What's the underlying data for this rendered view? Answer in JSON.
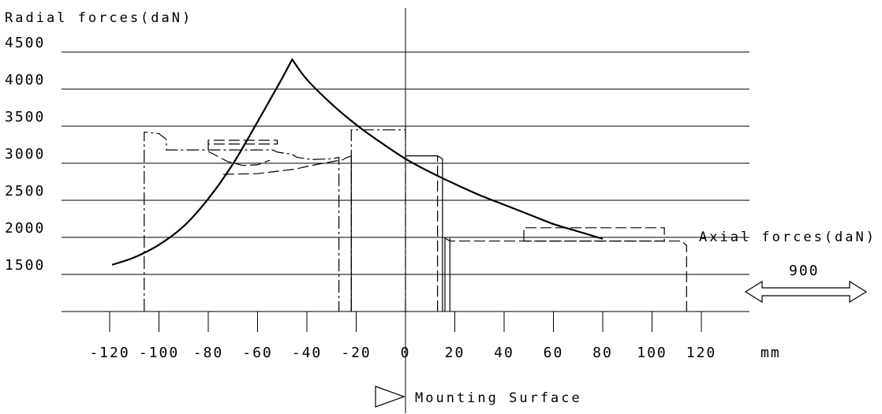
{
  "chart_data": {
    "type": "line",
    "title": "Radial forces(daN)",
    "xlabel": "mm",
    "y_ticks": [
      4500,
      4000,
      3500,
      3000,
      2500,
      2000,
      1500
    ],
    "x_ticks": [
      -120,
      -100,
      -80,
      -60,
      -40,
      -20,
      0,
      20,
      40,
      60,
      80,
      100,
      120
    ],
    "x_tick_labels": [
      "-120",
      "-100",
      "-80",
      "-60",
      "-40",
      "-20",
      "0",
      "20",
      "40",
      "60",
      "80",
      "100",
      "120"
    ],
    "y_tick_labels": [
      "4500",
      "4000",
      "3500",
      "3000",
      "2500",
      "2000",
      "1500"
    ],
    "xlim": [
      -140,
      140
    ],
    "ylim": [
      1000,
      4700
    ],
    "grid": true,
    "annotations": {
      "axial_forces": "Axial forces(daN)",
      "axial_value": "900",
      "mounting_surface": "Mounting Surface"
    },
    "radial_curve": {
      "x": [
        -119,
        -110,
        -100,
        -90,
        -80,
        -70,
        -60,
        -50,
        -46,
        -40,
        -30,
        -20,
        -10,
        0,
        10,
        20,
        30,
        40,
        50,
        60,
        70,
        80
      ],
      "y": [
        1630,
        1730,
        1900,
        2150,
        2520,
        2990,
        3560,
        4150,
        4400,
        4130,
        3800,
        3520,
        3280,
        3060,
        2880,
        2720,
        2570,
        2440,
        2310,
        2180,
        2080,
        1980
      ]
    },
    "profiles": [
      {
        "style": "dashdot",
        "x": [
          -106,
          -106,
          -100,
          -97,
          -97,
          -54,
          -52,
          -46,
          -44,
          -38,
          -30,
          -27,
          -27
        ],
        "y": [
          1000,
          3420,
          3400,
          3320,
          3180,
          3180,
          3150,
          3120,
          3080,
          3050,
          3060,
          3080,
          1000
        ]
      },
      {
        "style": "dash",
        "x": [
          -80,
          -80,
          -52,
          -52,
          -80
        ],
        "y": [
          3180,
          3310,
          3310,
          3260,
          3260
        ]
      },
      {
        "style": "dash",
        "x": [
          -80,
          -72,
          -66,
          -60,
          -55
        ],
        "y": [
          3160,
          3020,
          2970,
          2980,
          3040
        ]
      },
      {
        "style": "dash",
        "x": [
          -74,
          -60,
          -45,
          -35,
          -25
        ],
        "y": [
          2850,
          2860,
          2920,
          2990,
          3050
        ]
      },
      {
        "style": "dashdot",
        "x": [
          -22,
          -22,
          0,
          0
        ],
        "y": [
          1000,
          3450,
          3450,
          1000
        ]
      },
      {
        "style": "thin",
        "x": [
          -25,
          -22,
          -22
        ],
        "y": [
          3060,
          3100,
          1000
        ]
      },
      {
        "style": "thin",
        "x": [
          0,
          13,
          15,
          15
        ],
        "y": [
          3100,
          3100,
          3060,
          1000
        ]
      },
      {
        "style": "dash",
        "x": [
          13,
          13
        ],
        "y": [
          1000,
          3100
        ]
      },
      {
        "style": "thin",
        "x": [
          16,
          16
        ],
        "y": [
          1000,
          1990
        ]
      },
      {
        "style": "thin",
        "x": [
          18,
          18
        ],
        "y": [
          1000,
          1990
        ]
      },
      {
        "style": "dash",
        "x": [
          48,
          48,
          105,
          105,
          48
        ],
        "y": [
          1950,
          2130,
          2130,
          1950,
          1950
        ]
      },
      {
        "style": "dash",
        "x": [
          16,
          18,
          18,
          112,
          114,
          114
        ],
        "y": [
          1990,
          1950,
          1950,
          1950,
          1890,
          1000
        ]
      }
    ]
  }
}
